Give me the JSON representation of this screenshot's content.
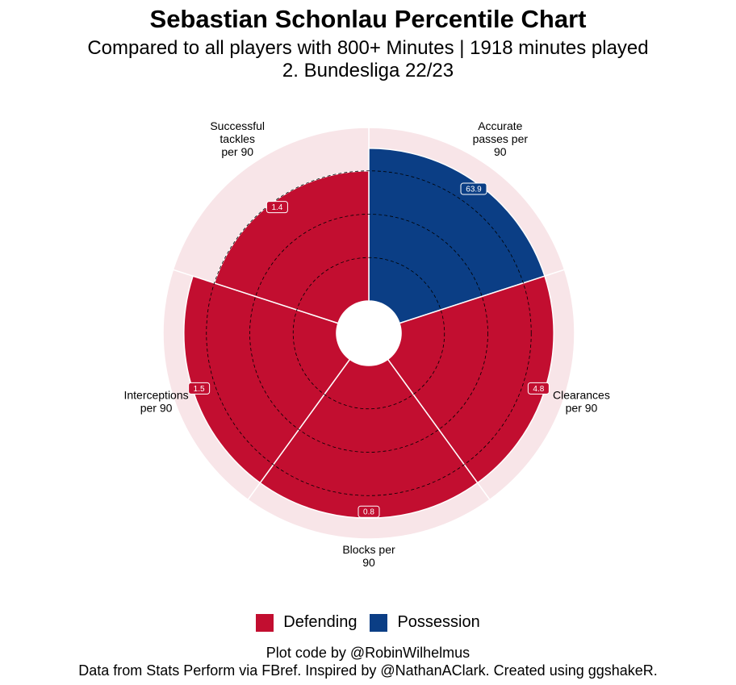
{
  "title": "Sebastian Schonlau Percentile Chart",
  "subtitle_line1": "Compared to all players with 800+ Minutes | 1918 minutes played",
  "subtitle_line2": "2. Bundesliga 22/23",
  "caption_line1": "Plot code by @RobinWilhelmus",
  "caption_line2": "Data from Stats Perform via FBref. Inspired by @NathanAClark. Created using ggshakeR.",
  "colors": {
    "defending": "#C20E30",
    "possession": "#0B3E85",
    "background_ring": "#F8E5E8",
    "grid": "#000000"
  },
  "legend": [
    {
      "label": "Defending",
      "color": "#C20E30"
    },
    {
      "label": "Possession",
      "color": "#0B3E85"
    }
  ],
  "chart_data": {
    "type": "polar-bar",
    "percentile_range": [
      0,
      100
    ],
    "grid_levels": [
      25,
      50,
      75
    ],
    "categories": [
      {
        "label_lines": [
          "Accurate",
          "passes per",
          "90"
        ],
        "value_label": "63.9",
        "percentile": 88,
        "group": "Possession"
      },
      {
        "label_lines": [
          "Clearances",
          "per 90"
        ],
        "value_label": "4.8",
        "percentile": 88,
        "group": "Defending"
      },
      {
        "label_lines": [
          "Blocks per",
          "90"
        ],
        "value_label": "0.8",
        "percentile": 88,
        "group": "Defending"
      },
      {
        "label_lines": [
          "Interceptions",
          "per 90"
        ],
        "value_label": "1.5",
        "percentile": 88,
        "group": "Defending"
      },
      {
        "label_lines": [
          "Successful",
          "tackles",
          "per 90"
        ],
        "value_label": "1.4",
        "percentile": 75,
        "group": "Defending"
      }
    ]
  }
}
